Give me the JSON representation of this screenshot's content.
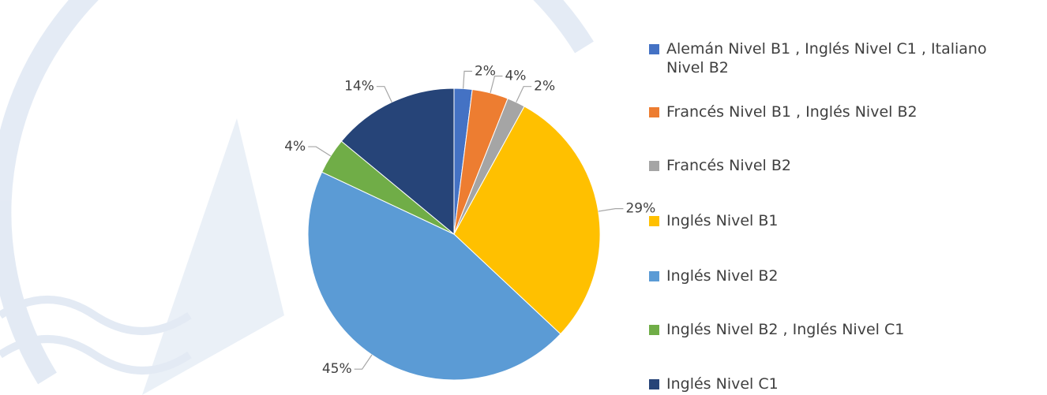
{
  "chart_data": {
    "type": "pie",
    "categories": [
      "Alemán Nivel B1 , Inglés Nivel C1 , Italiano Nivel B2",
      "Francés Nivel B1 , Inglés Nivel B2",
      "Francés Nivel B2",
      "Inglés Nivel B1",
      "Inglés Nivel B2",
      "Inglés Nivel B2 , Inglés Nivel C1",
      "Inglés Nivel C1"
    ],
    "values": [
      2,
      4,
      2,
      29,
      45,
      4,
      14
    ],
    "value_labels": [
      "2%",
      "4%",
      "2%",
      "29%",
      "45%",
      "4%",
      "14%"
    ],
    "colors": [
      "#4472c4",
      "#ed7d31",
      "#a5a5a5",
      "#ffc000",
      "#5b9bd5",
      "#70ad47",
      "#264478"
    ]
  }
}
